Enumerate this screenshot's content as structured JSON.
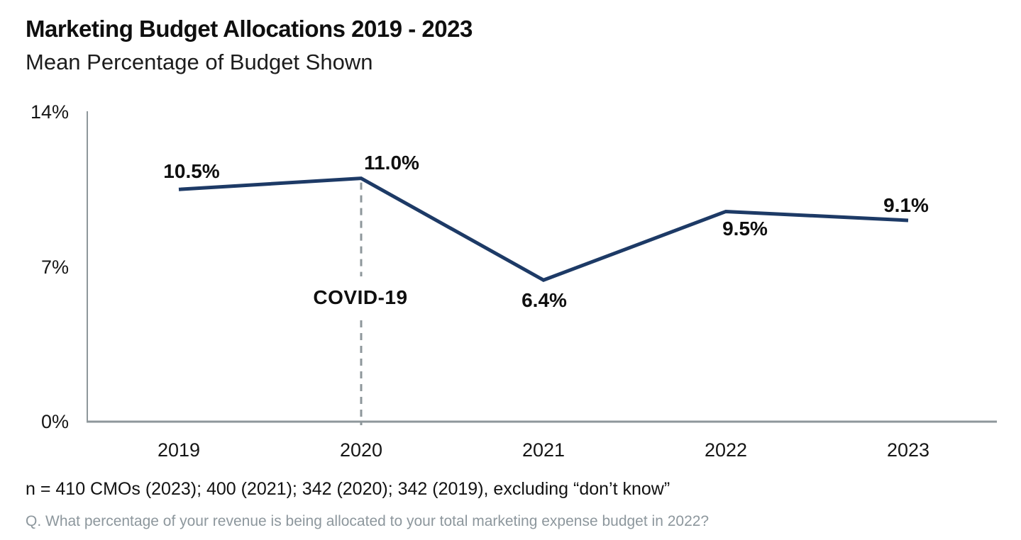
{
  "header": {
    "title": "Marketing Budget Allocations 2019 - 2023",
    "subtitle": "Mean Percentage of Budget Shown"
  },
  "chart_data": {
    "type": "line",
    "categories": [
      "2019",
      "2020",
      "2021",
      "2022",
      "2023"
    ],
    "values": [
      10.5,
      11.0,
      6.4,
      9.5,
      9.1
    ],
    "point_labels": [
      "10.5%",
      "11.0%",
      "6.4%",
      "9.5%",
      "9.1%"
    ],
    "title": "Marketing Budget Allocations 2019 - 2023",
    "subtitle": "Mean Percentage of Budget Shown",
    "xlabel": "",
    "ylabel": "",
    "ylim": [
      0,
      14
    ],
    "y_ticks": [
      {
        "label": "0%",
        "value": 0
      },
      {
        "label": "7%",
        "value": 7
      },
      {
        "label": "14%",
        "value": 14
      }
    ],
    "grid": false,
    "legend": false,
    "annotation": {
      "text": "COVID-19",
      "category": "2020"
    },
    "colors": {
      "line": "#1d3a66",
      "axis": "#8e979b",
      "dash": "#8e979b",
      "text": "#0f0f0f"
    }
  },
  "footnotes": {
    "sample": "n = 410 CMOs (2023); 400 (2021); 342 (2020); 342 (2019), excluding “don’t know”",
    "question": "Q. What percentage of your revenue is being allocated to your total marketing expense budget in 2022?"
  }
}
